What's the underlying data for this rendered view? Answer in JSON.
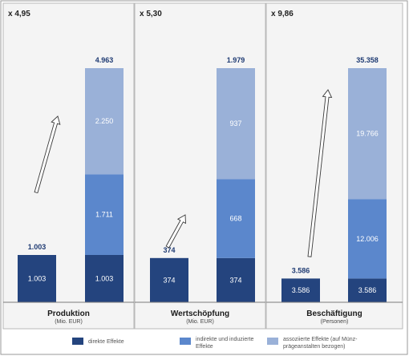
{
  "chart_data": {
    "type": "bar",
    "stacked": true,
    "colors": {
      "direkt": "#24447e",
      "indirekt": "#5b87cc",
      "assoziiert": "#9ab1d8",
      "arrow": "#ffffff",
      "panel": "#f4f4f4"
    },
    "legend": [
      {
        "key": "direkt",
        "label": "direkte Effekte"
      },
      {
        "key": "indirekt",
        "label_lines": [
          "indirekte und induzierte",
          "Effekte"
        ]
      },
      {
        "key": "assoziiert",
        "label_lines": [
          "assoziierte Effekte (auf Münz-",
          "prägeanstalten bezogen)"
        ]
      }
    ],
    "groups": [
      {
        "title": "Produktion",
        "subtitle": "(Mio. EUR)",
        "multiplier": "x 4,95",
        "bars": [
          {
            "total_label": "1.003",
            "segments": [
              {
                "series": "direkt",
                "value": 1003,
                "label": "1.003"
              }
            ]
          },
          {
            "total_label": "4.963",
            "segments": [
              {
                "series": "direkt",
                "value": 1003,
                "label": "1.003"
              },
              {
                "series": "indirekt",
                "value": 1711,
                "label": "1.711"
              },
              {
                "series": "assoziiert",
                "value": 2250,
                "label": "2.250"
              }
            ]
          }
        ]
      },
      {
        "title": "Wertschöpfung",
        "subtitle": "(Mio. EUR)",
        "multiplier": "x 5,30",
        "bars": [
          {
            "total_label": "374",
            "segments": [
              {
                "series": "direkt",
                "value": 374,
                "label": "374"
              }
            ]
          },
          {
            "total_label": "1.979",
            "segments": [
              {
                "series": "direkt",
                "value": 374,
                "label": "374"
              },
              {
                "series": "indirekt",
                "value": 668,
                "label": "668"
              },
              {
                "series": "assoziiert",
                "value": 937,
                "label": "937"
              }
            ]
          }
        ]
      },
      {
        "title": "Beschäftigung",
        "subtitle": "(Personen)",
        "multiplier": "x 9,86",
        "bars": [
          {
            "total_label": "3.586",
            "segments": [
              {
                "series": "direkt",
                "value": 3586,
                "label": "3.586"
              }
            ]
          },
          {
            "total_label": "35.358",
            "segments": [
              {
                "series": "direkt",
                "value": 3586,
                "label": "3.586"
              },
              {
                "series": "indirekt",
                "value": 12006,
                "label": "12.006"
              },
              {
                "series": "assoziiert",
                "value": 19766,
                "label": "19.766"
              }
            ]
          }
        ]
      }
    ]
  }
}
